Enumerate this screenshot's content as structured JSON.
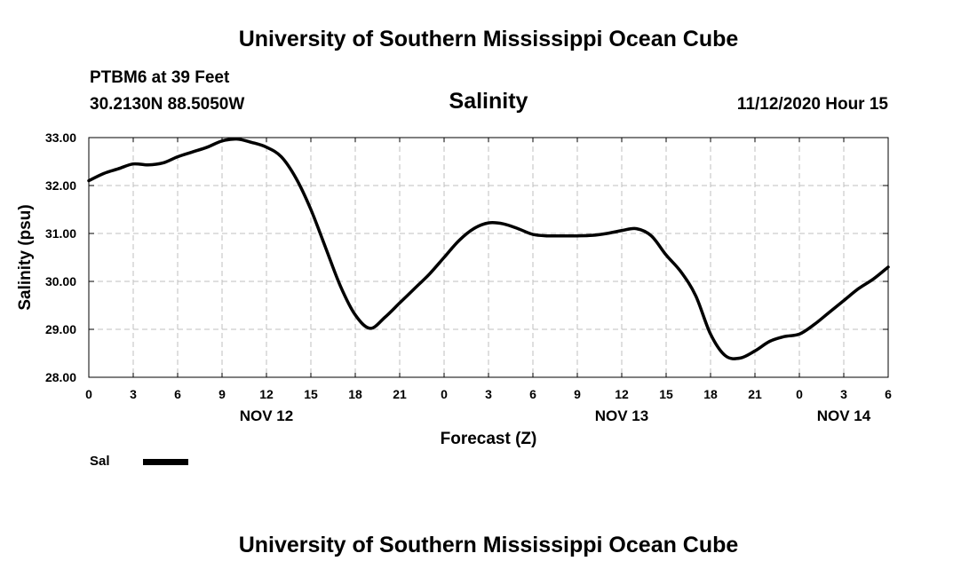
{
  "header": {
    "org_title": "University of Southern Mississippi Ocean Cube",
    "station": "PTBM6 at 39 Feet",
    "coords": "30.2130N 88.5050W",
    "issued": "11/12/2020 Hour 15"
  },
  "footer": {
    "org_title": "University of Southern Mississippi Ocean Cube"
  },
  "legend": {
    "label": "Sal"
  },
  "chart_data": {
    "type": "line",
    "title": "Salinity",
    "xlabel": "Forecast (Z)",
    "ylabel": "Salinity (psu)",
    "xlim": [
      0,
      54
    ],
    "ylim": [
      28.0,
      33.0
    ],
    "x_ticks": [
      0,
      3,
      6,
      9,
      12,
      15,
      18,
      21,
      24,
      27,
      30,
      33,
      36,
      39,
      42,
      45,
      48,
      51,
      54
    ],
    "x_tick_labels": [
      "0",
      "3",
      "6",
      "9",
      "12",
      "15",
      "18",
      "21",
      "0",
      "3",
      "6",
      "9",
      "12",
      "15",
      "18",
      "21",
      "0",
      "3",
      "6"
    ],
    "y_ticks": [
      28,
      29,
      30,
      31,
      32,
      33
    ],
    "y_tick_labels": [
      "28.00",
      "29.00",
      "30.00",
      "31.00",
      "32.00",
      "33.00"
    ],
    "date_labels": [
      {
        "label": "NOV 12",
        "x": 12
      },
      {
        "label": "NOV 13",
        "x": 36
      },
      {
        "label": "NOV 14",
        "x": 51
      }
    ],
    "grid": true,
    "legend_position": "bottom-left",
    "series": [
      {
        "name": "Sal",
        "color": "#000000",
        "x": [
          0,
          1,
          2,
          3,
          4,
          5,
          6,
          7,
          8,
          9,
          10,
          11,
          12,
          13,
          14,
          15,
          16,
          17,
          18,
          19,
          20,
          21,
          22,
          23,
          24,
          25,
          26,
          27,
          28,
          29,
          30,
          31,
          32,
          33,
          34,
          35,
          36,
          37,
          38,
          39,
          40,
          41,
          42,
          43,
          44,
          45,
          46,
          47,
          48,
          49,
          50,
          51,
          52,
          53,
          54
        ],
        "y": [
          32.1,
          32.25,
          32.35,
          32.45,
          32.43,
          32.47,
          32.6,
          32.7,
          32.8,
          32.93,
          32.97,
          32.9,
          32.8,
          32.6,
          32.15,
          31.5,
          30.7,
          29.9,
          29.3,
          29.02,
          29.25,
          29.55,
          29.85,
          30.15,
          30.5,
          30.85,
          31.1,
          31.22,
          31.2,
          31.1,
          30.98,
          30.95,
          30.95,
          30.95,
          30.96,
          31.0,
          31.06,
          31.1,
          30.95,
          30.55,
          30.2,
          29.7,
          28.9,
          28.45,
          28.4,
          28.55,
          28.75,
          28.85,
          28.9,
          29.1,
          29.35,
          29.6,
          29.85,
          30.05,
          30.3
        ]
      }
    ]
  }
}
